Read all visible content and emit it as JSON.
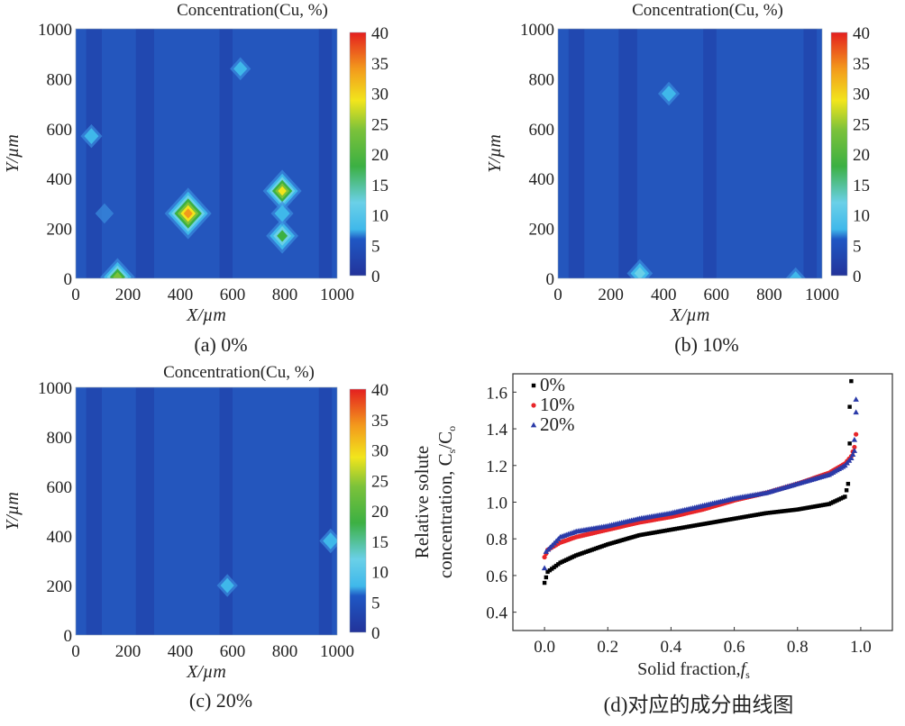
{
  "colors": {
    "background_low": "#1f4fb0",
    "mid_blue": "#2a62c8",
    "cyan": "#3fb8ea",
    "green": "#3cb043",
    "yellow": "#f2e51c",
    "red": "#e41f1f",
    "series_0": "#000000",
    "series_10": "#e8262a",
    "series_20": "#2a3aa8"
  },
  "colorbar": {
    "min": 0,
    "max": 40,
    "ticks": [
      "0",
      "5",
      "10",
      "15",
      "20",
      "25",
      "30",
      "35",
      "40"
    ]
  },
  "maps": [
    {
      "id": "a",
      "title": "Concentration(Cu, %)",
      "caption": "(a) 0%",
      "xlabel": "X/µm",
      "ylabel": "Y/µm",
      "xticks": [
        "0",
        "200",
        "400",
        "600",
        "800",
        "1000"
      ],
      "yticks": [
        "0",
        "200",
        "400",
        "600",
        "800",
        "1000"
      ],
      "hotspots": [
        {
          "x": 430,
          "y": 260,
          "value": 40
        },
        {
          "x": 790,
          "y": 350,
          "value": 30
        },
        {
          "x": 790,
          "y": 170,
          "value": 22
        },
        {
          "x": 790,
          "y": 260,
          "value": 10
        },
        {
          "x": 160,
          "y": 5,
          "value": 25
        },
        {
          "x": 60,
          "y": 570,
          "value": 9
        },
        {
          "x": 630,
          "y": 840,
          "value": 8
        },
        {
          "x": 110,
          "y": 260,
          "value": 5
        }
      ]
    },
    {
      "id": "b",
      "title": "Concentration(Cu, %)",
      "caption": "(b) 10%",
      "xlabel": "X/µm",
      "ylabel": "Y/µm",
      "xticks": [
        "0",
        "200",
        "400",
        "600",
        "800",
        "1000"
      ],
      "yticks": [
        "0",
        "200",
        "400",
        "600",
        "800",
        "1000"
      ],
      "hotspots": [
        {
          "x": 310,
          "y": 20,
          "value": 14
        },
        {
          "x": 420,
          "y": 740,
          "value": 9
        },
        {
          "x": 900,
          "y": 0,
          "value": 7
        }
      ]
    },
    {
      "id": "c",
      "title": "Concentration(Cu, %)",
      "caption": "(c) 20%",
      "xlabel": "X/µm",
      "ylabel": "Y/µm",
      "xticks": [
        "0",
        "200",
        "400",
        "600",
        "800",
        "1000"
      ],
      "yticks": [
        "0",
        "200",
        "400",
        "600",
        "800",
        "1000"
      ],
      "hotspots": [
        {
          "x": 975,
          "y": 380,
          "value": 10
        },
        {
          "x": 580,
          "y": 200,
          "value": 8
        }
      ]
    }
  ],
  "chart_data": {
    "type": "scatter",
    "title": "",
    "caption": "(d)对应的成分曲线图",
    "xlabel": "Solid fraction,",
    "xlabel_symbol": "f",
    "xlabel_sub": "s",
    "ylabel_line1": "Relative solute",
    "ylabel_line2": "concentration, C",
    "ylabel_sub1": "s",
    "ylabel_mid": "/C",
    "ylabel_sub2": "o",
    "xlim": [
      -0.1,
      1.1
    ],
    "ylim": [
      0.3,
      1.7
    ],
    "xticks": [
      "0.0",
      "0.2",
      "0.4",
      "0.6",
      "0.8",
      "1.0"
    ],
    "yticks": [
      "0.4",
      "0.6",
      "0.8",
      "1.0",
      "1.2",
      "1.4",
      "1.6"
    ],
    "legend_position": "top-left",
    "series": [
      {
        "name": "0%",
        "marker": "square",
        "curve": [
          [
            0,
            0.56
          ],
          [
            0.01,
            0.62
          ],
          [
            0.05,
            0.67
          ],
          [
            0.1,
            0.71
          ],
          [
            0.15,
            0.74
          ],
          [
            0.2,
            0.77
          ],
          [
            0.3,
            0.82
          ],
          [
            0.4,
            0.85
          ],
          [
            0.5,
            0.88
          ],
          [
            0.6,
            0.91
          ],
          [
            0.7,
            0.94
          ],
          [
            0.8,
            0.96
          ],
          [
            0.9,
            0.99
          ],
          [
            0.95,
            1.03
          ],
          [
            0.96,
            1.1
          ]
        ],
        "outliers": [
          [
            0.965,
            1.32
          ],
          [
            0.965,
            1.52
          ],
          [
            0.97,
            1.66
          ]
        ]
      },
      {
        "name": "10%",
        "marker": "circle",
        "curve": [
          [
            0,
            0.7
          ],
          [
            0.01,
            0.74
          ],
          [
            0.05,
            0.78
          ],
          [
            0.1,
            0.81
          ],
          [
            0.2,
            0.85
          ],
          [
            0.3,
            0.89
          ],
          [
            0.4,
            0.92
          ],
          [
            0.5,
            0.96
          ],
          [
            0.6,
            1.01
          ],
          [
            0.7,
            1.05
          ],
          [
            0.8,
            1.1
          ],
          [
            0.9,
            1.16
          ],
          [
            0.95,
            1.21
          ],
          [
            0.97,
            1.25
          ],
          [
            0.98,
            1.3
          ]
        ],
        "outliers": [
          [
            0.985,
            1.37
          ]
        ]
      },
      {
        "name": "20%",
        "marker": "triangle",
        "curve": [
          [
            0.005,
            0.73
          ],
          [
            0.05,
            0.81
          ],
          [
            0.1,
            0.84
          ],
          [
            0.2,
            0.87
          ],
          [
            0.3,
            0.91
          ],
          [
            0.4,
            0.94
          ],
          [
            0.5,
            0.98
          ],
          [
            0.6,
            1.02
          ],
          [
            0.7,
            1.05
          ],
          [
            0.8,
            1.1
          ],
          [
            0.9,
            1.15
          ],
          [
            0.95,
            1.2
          ],
          [
            0.97,
            1.24
          ],
          [
            0.98,
            1.28
          ]
        ],
        "outliers": [
          [
            0,
            0.64
          ],
          [
            0.98,
            1.34
          ],
          [
            0.985,
            1.49
          ],
          [
            0.985,
            1.56
          ]
        ]
      }
    ]
  }
}
